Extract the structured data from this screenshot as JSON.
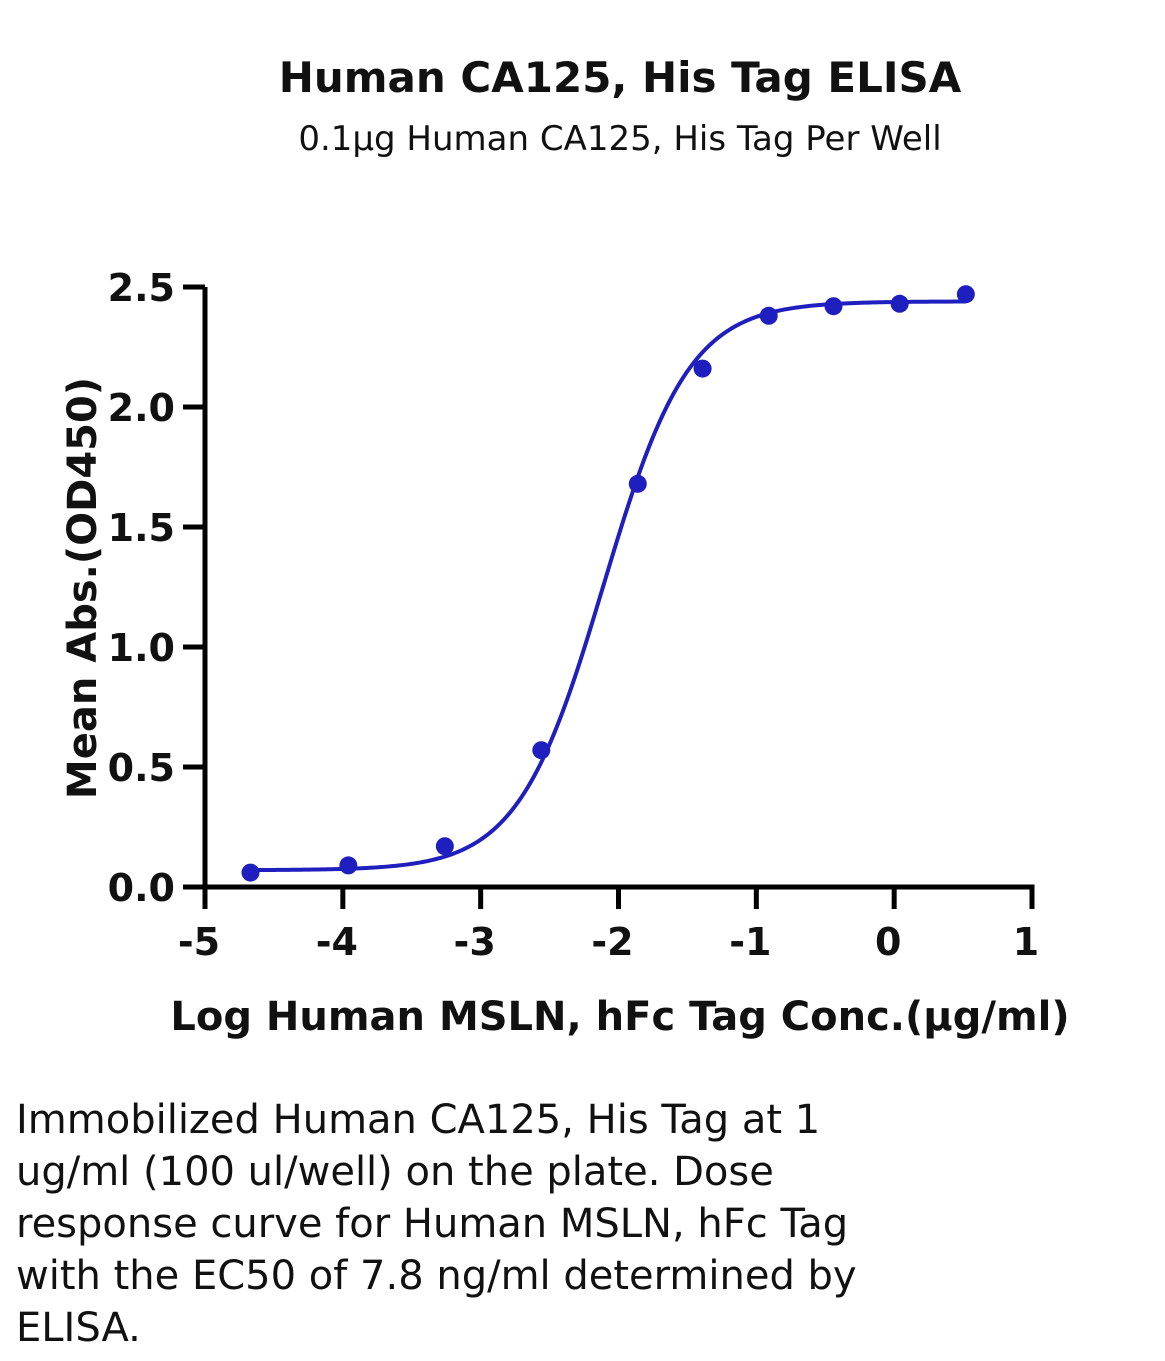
{
  "chart_data": {
    "type": "scatter",
    "title": "Human CA125, His Tag ELISA",
    "subtitle": "0.1µg Human CA125, His Tag Per Well",
    "xlabel": "Log Human MSLN, hFc Tag Conc.(µg/ml)",
    "ylabel": "Mean Abs.(OD450)",
    "xlim": [
      -5,
      1
    ],
    "ylim": [
      0,
      2.5
    ],
    "x_ticks": [
      "-5",
      "-4",
      "-3",
      "-2",
      "-1",
      "0",
      "1"
    ],
    "y_ticks": [
      "0.0",
      "0.5",
      "1.0",
      "1.5",
      "2.0",
      "2.5"
    ],
    "x_tick_values": [
      -5,
      -4,
      -3,
      -2,
      -1,
      0,
      1
    ],
    "y_tick_values": [
      0,
      0.5,
      1.0,
      1.5,
      2.0,
      2.5
    ],
    "series": [
      {
        "x": [
          -4.67,
          -3.96,
          -3.26,
          -2.56,
          -1.86,
          -1.39,
          -0.91,
          -0.44,
          0.04,
          0.52
        ],
        "y": [
          0.06,
          0.09,
          0.17,
          0.57,
          1.68,
          2.16,
          2.38,
          2.42,
          2.43,
          2.47
        ],
        "color": "#1f1fbf"
      }
    ],
    "fit": {
      "model": "4PL",
      "bottom": 0.07,
      "top": 2.44,
      "log_ec50": -2.11,
      "hill": 1.4,
      "color": "#1f1fbf"
    },
    "grid": false,
    "legend": "none"
  },
  "caption": {
    "lines": [
      "Immobilized Human CA125, His Tag at 1",
      "ug/ml (100 ul/well) on the plate. Dose",
      "response curve for Human MSLN, hFc Tag",
      "with the EC50 of 7.8 ng/ml determined by",
      "ELISA."
    ]
  }
}
